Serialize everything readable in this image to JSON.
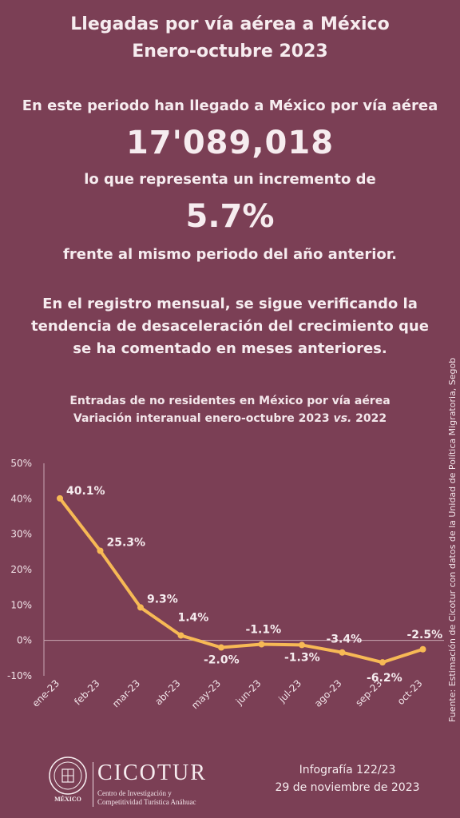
{
  "header": {
    "title_line1": "Llegadas por vía aérea a México",
    "title_line2": "Enero-octubre 2023"
  },
  "summary": {
    "intro": "En este periodo han llegado a México por vía aérea",
    "total": "17'089,018",
    "represents": "lo que representa un incremento de",
    "increase": "5.7%",
    "compare": "frente al mismo periodo del año anterior.",
    "para_line1": "En el registro mensual, se sigue verificando la",
    "para_line2": "tendencia de desaceleración del crecimiento que",
    "para_line3": "se ha comentado en meses anteriores."
  },
  "chart_title": {
    "line1": "Entradas de no residentes en México por vía aérea",
    "line2_prefix": "Variación interanual enero-octubre 2023 ",
    "line2_vs": "vs.",
    "line2_suffix": " 2022"
  },
  "chart_data": {
    "type": "line",
    "categories": [
      "ene-23",
      "feb-23",
      "mar-23",
      "abr-23",
      "may-23",
      "jun-23",
      "jul-23",
      "ago-23",
      "sep-23",
      "oct-23"
    ],
    "series": [
      {
        "values": [
          40.1,
          25.3,
          9.3,
          1.4,
          -2.0,
          -1.1,
          -1.3,
          -3.4,
          -6.2,
          -2.5
        ]
      }
    ],
    "data_labels": [
      "40.1%",
      "25.3%",
      "9.3%",
      "1.4%",
      "-2.0%",
      "-1.1%",
      "-1.3%",
      "-3.4%",
      "-6.2%",
      "-2.5%"
    ],
    "y_ticks": [
      50,
      40,
      30,
      20,
      10,
      0,
      -10
    ],
    "y_tick_labels": [
      "50%",
      "40%",
      "30%",
      "20%",
      "10%",
      "0%",
      "-10%"
    ],
    "ylim": [
      -10,
      50
    ],
    "grid": false,
    "line_color": "#f7b955"
  },
  "source": "Fuente: Estimación de Cicotur con datos de la Unidad de Política Migratoria, Segob",
  "footer": {
    "seal_caption": "MÉXICO",
    "logo_word": "CICOTUR",
    "logo_sub1": "Centro de Investigación y",
    "logo_sub2": "Competitividad Turística Anáhuac",
    "infografia": "Infografía 122/23",
    "date": "29 de noviembre de 2023"
  },
  "colors": {
    "background": "#7b3f55",
    "text": "#f6ecef",
    "accent": "#f7b955"
  }
}
